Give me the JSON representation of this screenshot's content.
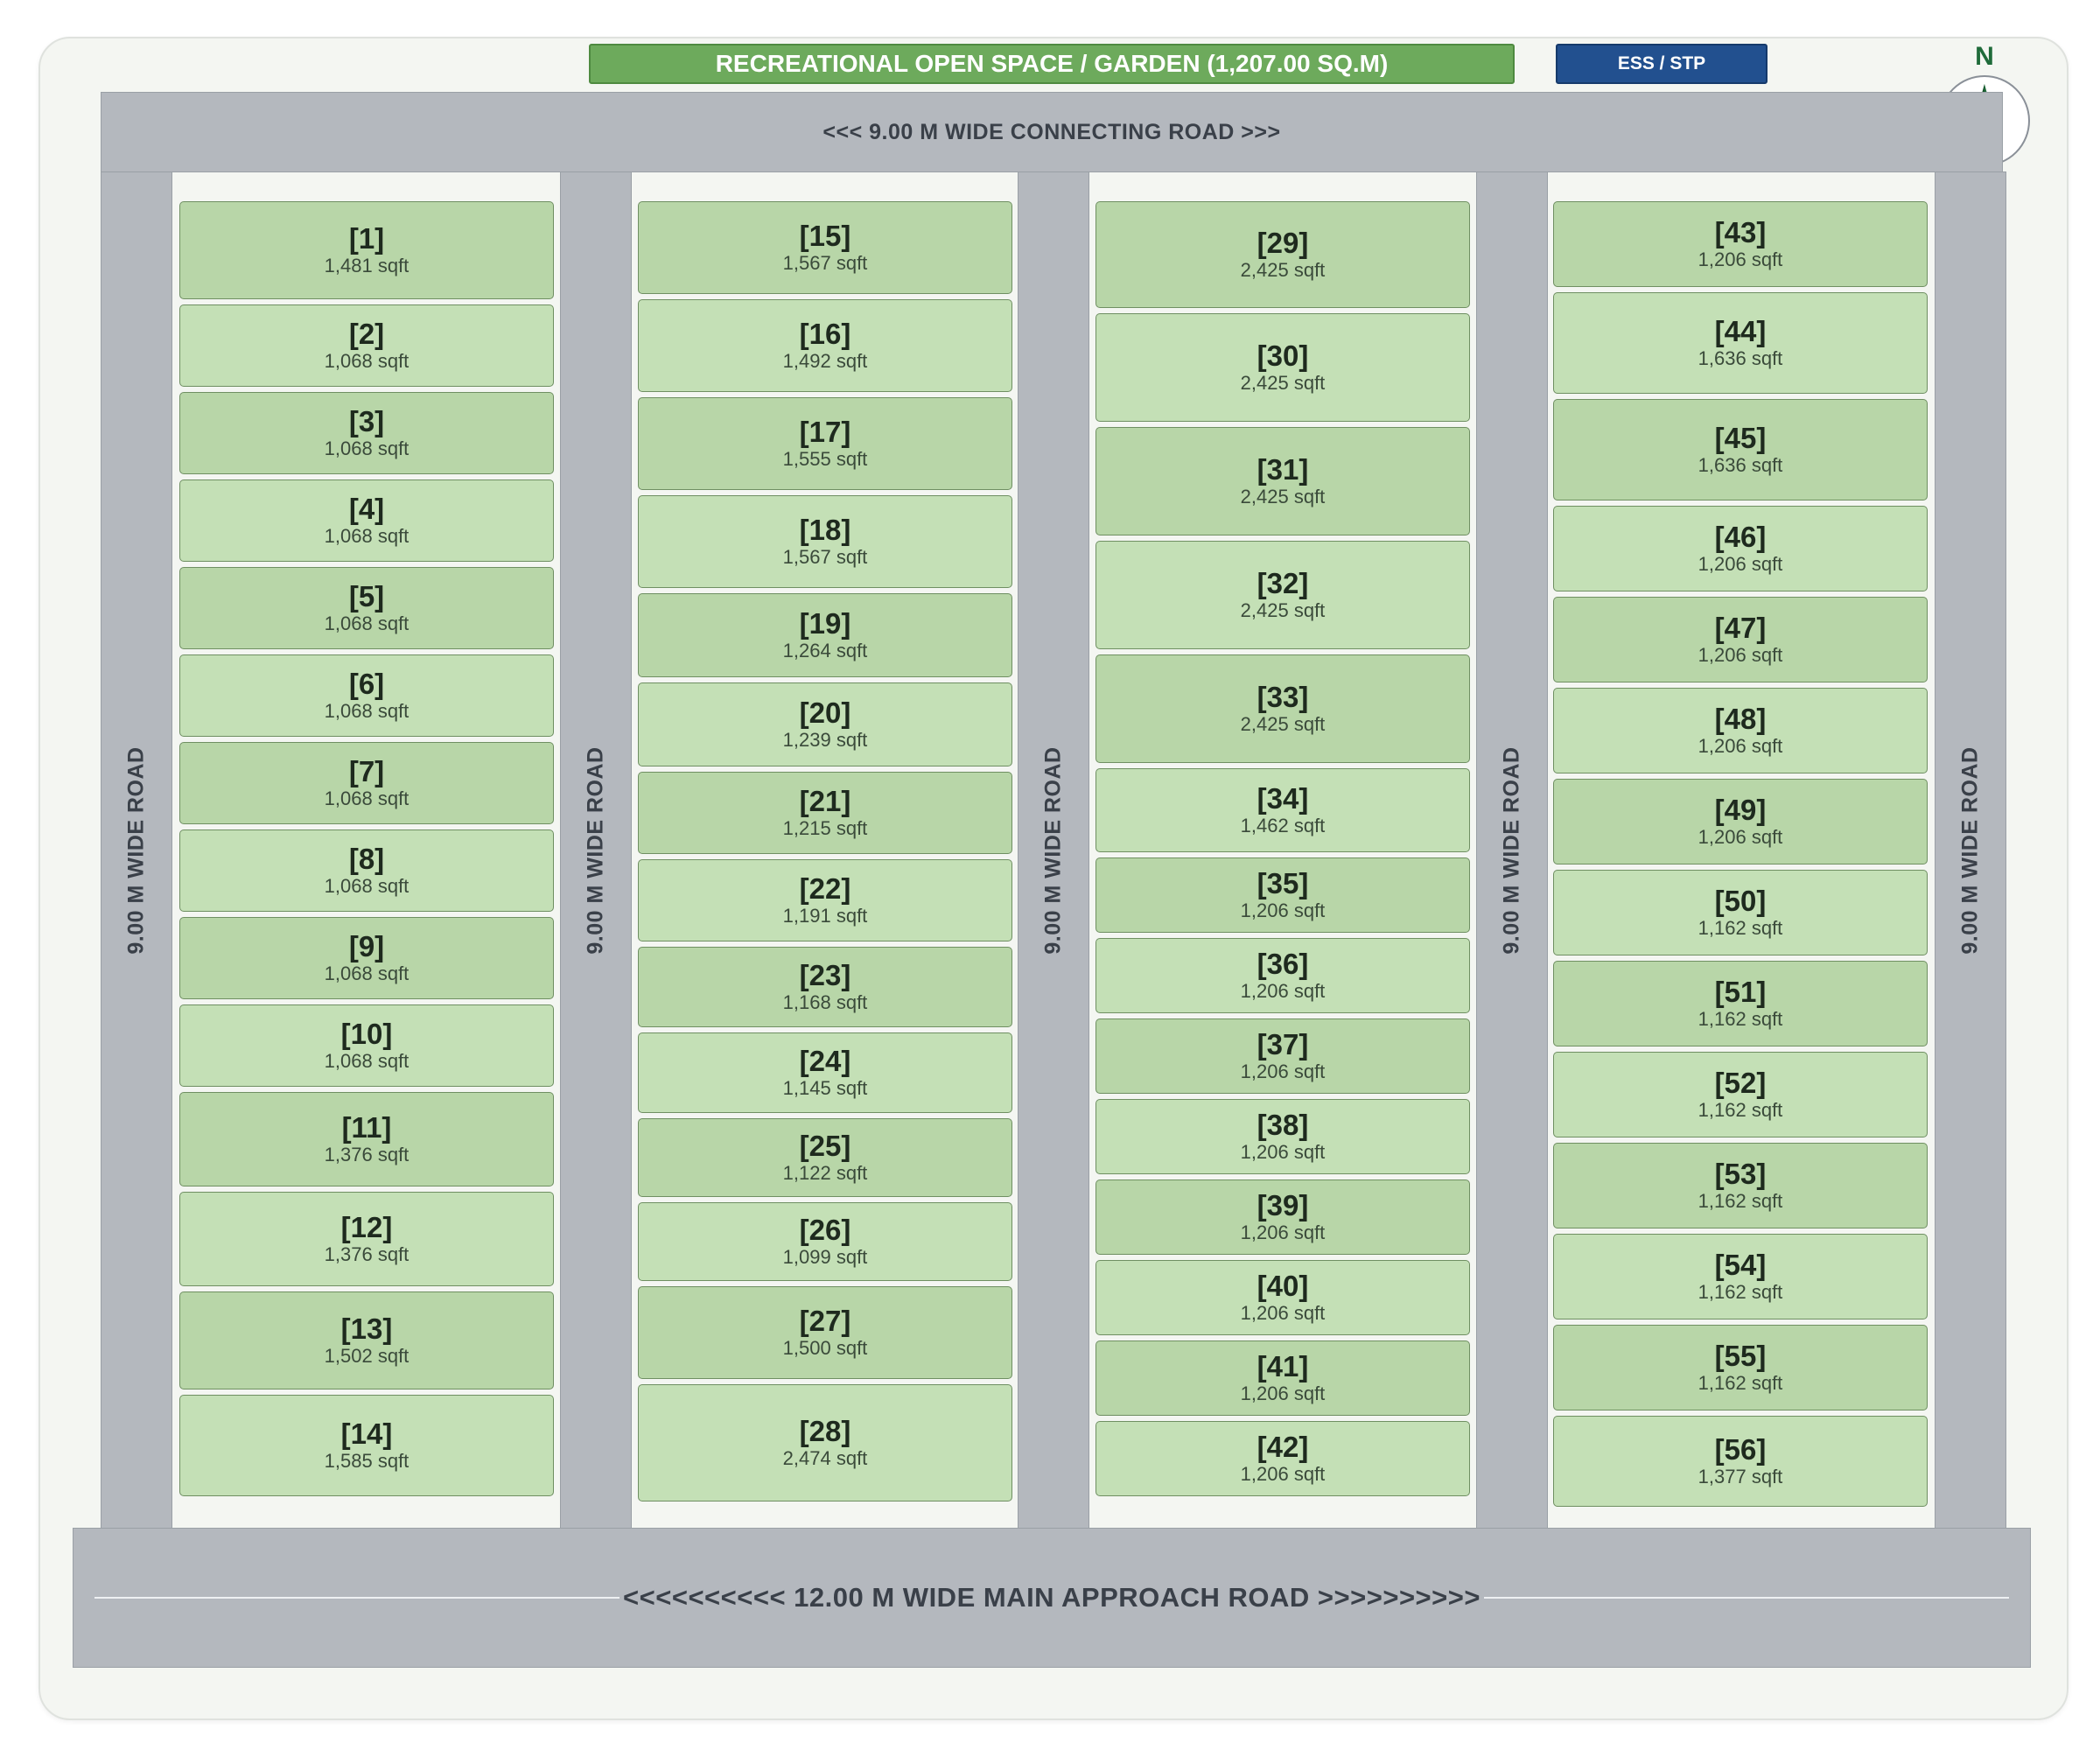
{
  "header": {
    "garden_label": "RECREATIONAL OPEN SPACE / GARDEN (1,207.00 SQ.M)",
    "ess_label": "ESS / STP",
    "north_label": "N"
  },
  "roads": {
    "top": "<<< 9.00 M WIDE CONNECTING ROAD >>>",
    "main": "<<<<<<<<<< 12.00 M WIDE MAIN APPROACH ROAD >>>>>>>>>>",
    "vertical": "9.00 M WIDE ROAD"
  },
  "colors": {
    "road": "#b4b8be",
    "plot_dark": "#b8d6a8",
    "plot_light": "#c4e0b6",
    "garden": "#6daa5c",
    "ess": "#22508f",
    "compass_north": "#1f6b3a"
  },
  "columns": [
    {
      "plots": [
        {
          "number": "[1]",
          "area": "1,481 sqft"
        },
        {
          "number": "[2]",
          "area": "1,068 sqft"
        },
        {
          "number": "[3]",
          "area": "1,068 sqft"
        },
        {
          "number": "[4]",
          "area": "1,068 sqft"
        },
        {
          "number": "[5]",
          "area": "1,068 sqft"
        },
        {
          "number": "[6]",
          "area": "1,068 sqft"
        },
        {
          "number": "[7]",
          "area": "1,068 sqft"
        },
        {
          "number": "[8]",
          "area": "1,068 sqft"
        },
        {
          "number": "[9]",
          "area": "1,068 sqft"
        },
        {
          "number": "[10]",
          "area": "1,068 sqft"
        },
        {
          "number": "[11]",
          "area": "1,376 sqft"
        },
        {
          "number": "[12]",
          "area": "1,376 sqft"
        },
        {
          "number": "[13]",
          "area": "1,502 sqft"
        },
        {
          "number": "[14]",
          "area": "1,585 sqft"
        }
      ]
    },
    {
      "plots": [
        {
          "number": "[15]",
          "area": "1,567 sqft"
        },
        {
          "number": "[16]",
          "area": "1,492 sqft"
        },
        {
          "number": "[17]",
          "area": "1,555 sqft"
        },
        {
          "number": "[18]",
          "area": "1,567 sqft"
        },
        {
          "number": "[19]",
          "area": "1,264 sqft"
        },
        {
          "number": "[20]",
          "area": "1,239 sqft"
        },
        {
          "number": "[21]",
          "area": "1,215 sqft"
        },
        {
          "number": "[22]",
          "area": "1,191 sqft"
        },
        {
          "number": "[23]",
          "area": "1,168 sqft"
        },
        {
          "number": "[24]",
          "area": "1,145 sqft"
        },
        {
          "number": "[25]",
          "area": "1,122 sqft"
        },
        {
          "number": "[26]",
          "area": "1,099 sqft"
        },
        {
          "number": "[27]",
          "area": "1,500 sqft"
        },
        {
          "number": "[28]",
          "area": "2,474 sqft"
        }
      ]
    },
    {
      "plots": [
        {
          "number": "[29]",
          "area": "2,425 sqft"
        },
        {
          "number": "[30]",
          "area": "2,425 sqft"
        },
        {
          "number": "[31]",
          "area": "2,425 sqft"
        },
        {
          "number": "[32]",
          "area": "2,425 sqft"
        },
        {
          "number": "[33]",
          "area": "2,425 sqft"
        },
        {
          "number": "[34]",
          "area": "1,462 sqft"
        },
        {
          "number": "[35]",
          "area": "1,206 sqft"
        },
        {
          "number": "[36]",
          "area": "1,206 sqft"
        },
        {
          "number": "[37]",
          "area": "1,206 sqft"
        },
        {
          "number": "[38]",
          "area": "1,206 sqft"
        },
        {
          "number": "[39]",
          "area": "1,206 sqft"
        },
        {
          "number": "[40]",
          "area": "1,206 sqft"
        },
        {
          "number": "[41]",
          "area": "1,206 sqft"
        },
        {
          "number": "[42]",
          "area": "1,206 sqft"
        }
      ]
    },
    {
      "plots": [
        {
          "number": "[43]",
          "area": "1,206 sqft"
        },
        {
          "number": "[44]",
          "area": "1,636 sqft"
        },
        {
          "number": "[45]",
          "area": "1,636 sqft"
        },
        {
          "number": "[46]",
          "area": "1,206 sqft"
        },
        {
          "number": "[47]",
          "area": "1,206 sqft"
        },
        {
          "number": "[48]",
          "area": "1,206 sqft"
        },
        {
          "number": "[49]",
          "area": "1,206 sqft"
        },
        {
          "number": "[50]",
          "area": "1,162 sqft"
        },
        {
          "number": "[51]",
          "area": "1,162 sqft"
        },
        {
          "number": "[52]",
          "area": "1,162 sqft"
        },
        {
          "number": "[53]",
          "area": "1,162 sqft"
        },
        {
          "number": "[54]",
          "area": "1,162 sqft"
        },
        {
          "number": "[55]",
          "area": "1,162 sqft"
        },
        {
          "number": "[56]",
          "area": "1,377 sqft"
        }
      ]
    }
  ]
}
